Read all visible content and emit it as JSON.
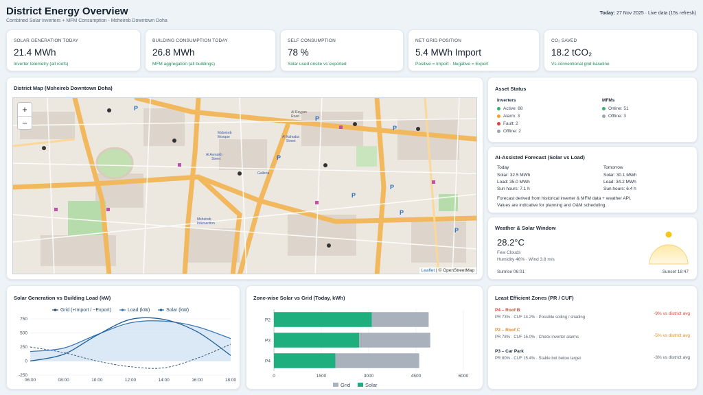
{
  "header": {
    "title": "District Energy Overview",
    "subtitle": "Combined Solar Inverters + MFM Consumption - Msheireb Downtown Doha",
    "date_label": "Today:",
    "date_value": "27 Nov 2025 · Live data (15s refresh)"
  },
  "kpis": [
    {
      "label": "SOLAR GENERATION TODAY",
      "value": "21.4 MWh",
      "note": "Inverter telemetry (all roofs)"
    },
    {
      "label": "BUILDING CONSUMPTION TODAY",
      "value": "26.8 MWh",
      "note": "MFM aggregation (all buildings)"
    },
    {
      "label": "SELF CONSUMPTION",
      "value": "78 %",
      "note": "Solar used onsite vs exported"
    },
    {
      "label": "NET GRID POSITION",
      "value": "5.4 MWh Import",
      "note": "Positive = Import · Negative = Export"
    },
    {
      "label": "CO₂ SAVED",
      "value": "18.2 tCO₂",
      "note": "Vs conventional grid baseline"
    }
  ],
  "map": {
    "title": "District Map (Msheireb Downtown Doha)",
    "zoom_in": "+",
    "zoom_out": "−",
    "attribution_leaflet": "Leaflet",
    "attribution_osm": "| © OpenStreetMap",
    "labels": [
      "Msheireb Mosque",
      "Al Rayyan Road",
      "Al Asmakh Street",
      "Galleria",
      "Msheireb Intersection",
      "Al Kahraba Street"
    ]
  },
  "asset_status": {
    "title": "Asset Status",
    "inverters_title": "Inverters",
    "mfms_title": "MFMs",
    "inverters": [
      {
        "label": "Active: 88",
        "color": "#2fb36b"
      },
      {
        "label": "Alarm: 3",
        "color": "#f0a12a"
      },
      {
        "label": "Fault: 2",
        "color": "#e0413a"
      },
      {
        "label": "Offline: 2",
        "color": "#9aa4ae"
      }
    ],
    "mfms": [
      {
        "label": "Online: 51",
        "color": "#2fb36b"
      },
      {
        "label": "Offline: 3",
        "color": "#9aa4ae"
      }
    ]
  },
  "forecast": {
    "title": "AI-Assisted Forecast (Solar vs Load)",
    "today_title": "Today",
    "today_solar": "Solar: 32.5 MWh",
    "today_load": "Load: 35.0 MWh",
    "today_sun": "Sun hours: 7.1 h",
    "tomorrow_title": "Tomorrow",
    "tomorrow_solar": "Solar: 30.1 MWh",
    "tomorrow_load": "Load: 34.2 MWh",
    "tomorrow_sun": "Sun hours: 6.4 h",
    "note1": "Forecast derived from historical inverter & MFM data + weather API.",
    "note2": "Values are indicative for planning and O&M scheduling."
  },
  "weather": {
    "title": "Weather & Solar Window",
    "temp": "28.2°C",
    "condition": "Few Clouds",
    "humidity": "Humidity 46% · Wind 3.8 m/s",
    "sunrise": "Sunrise 06:01",
    "sunset": "Sunset 18:47"
  },
  "line_chart_title": "Solar Generation vs Building Load (kW)",
  "bar_chart_title": "Zone-wise Solar vs Grid (Today, kWh)",
  "chart_data": [
    {
      "type": "line",
      "title": "Solar Generation vs Building Load (kW)",
      "legend": [
        "Grid (+Import / −Export)",
        "Load (kW)",
        "Solar (kW)"
      ],
      "x": [
        "06:00",
        "08:00",
        "10:00",
        "12:00",
        "14:00",
        "16:00",
        "18:00"
      ],
      "series": [
        {
          "name": "Grid (+Import / −Export)",
          "values": [
            250,
            150,
            0,
            -100,
            -120,
            50,
            300
          ],
          "color": "#274b6d",
          "dashed": true
        },
        {
          "name": "Load (kW)",
          "values": [
            170,
            230,
            470,
            680,
            710,
            610,
            400
          ],
          "color": "#3a77b8"
        },
        {
          "name": "Solar (kW)",
          "values": [
            0,
            120,
            460,
            740,
            740,
            520,
            100
          ],
          "color": "#1f5f9a"
        }
      ],
      "yticks": [
        -250,
        0,
        250,
        500,
        750
      ],
      "ylim": [
        -250,
        750
      ]
    },
    {
      "type": "bar",
      "title": "Zone-wise Solar vs Grid (Today, kWh)",
      "categories": [
        "P2",
        "P3",
        "P4"
      ],
      "series": [
        {
          "name": "Solar",
          "values": [
            3100,
            2700,
            1950
          ],
          "color": "#1fae7e"
        },
        {
          "name": "Grid",
          "values": [
            1800,
            2250,
            2650
          ],
          "color": "#a9b2bc"
        }
      ],
      "xticks": [
        0,
        1500,
        3000,
        4500,
        6000
      ],
      "xlim": [
        0,
        6000
      ],
      "legend": [
        "Grid",
        "Solar"
      ]
    }
  ],
  "zones": {
    "title": "Least Efficient Zones (PR / CUF)",
    "items": [
      {
        "name": "P4 – Roof B",
        "detail": "PR 73% · CUF 14.2% · Possible soiling / shading",
        "delta": "-9% vs district avg",
        "name_color": "#d64636",
        "delta_color": "#d64636"
      },
      {
        "name": "P2 – Roof C",
        "detail": "PR 78% · CUF 15.0% · Check inverter alarms",
        "delta": "-5% vs district avg",
        "name_color": "#e08a28",
        "delta_color": "#e08a28"
      },
      {
        "name": "P3 – Car Park",
        "detail": "PR 80% · CUF 15.4% · Stable but below target",
        "delta": "-3% vs district avg",
        "name_color": "#1f2a37",
        "delta_color": "#55626f"
      }
    ]
  }
}
